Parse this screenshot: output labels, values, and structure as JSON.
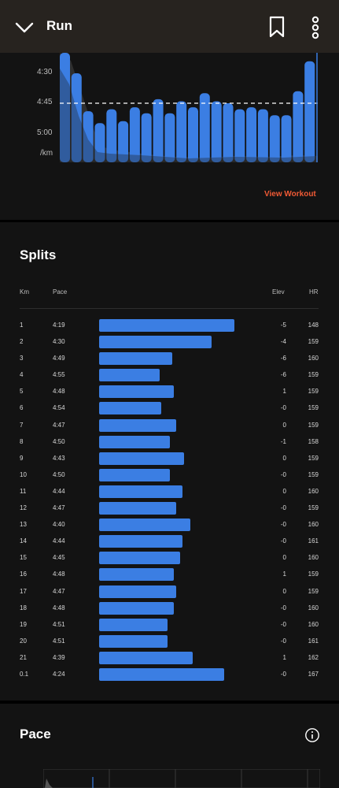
{
  "header": {
    "title": "Run",
    "background": "#27231f",
    "icons": [
      "chevron-down-icon",
      "bookmark-icon",
      "more-vertical-icon"
    ]
  },
  "pace_chart": {
    "y_labels": [
      "4:30",
      "4:45",
      "5:00",
      "/km"
    ],
    "average_line": "4:45",
    "bar_color": "#3b7ee3",
    "link": "View Workout",
    "link_color": "#f05a35",
    "chart_data": {
      "type": "bar",
      "categories": [
        "1",
        "2",
        "3",
        "4",
        "5",
        "6",
        "7",
        "8",
        "9",
        "10",
        "11",
        "12",
        "13",
        "14",
        "15",
        "16",
        "17",
        "18",
        "19",
        "20",
        "21",
        "0.1"
      ],
      "values_pace": [
        "4:19",
        "4:30",
        "4:49",
        "4:55",
        "4:48",
        "4:54",
        "4:47",
        "4:50",
        "4:43",
        "4:50",
        "4:44",
        "4:47",
        "4:40",
        "4:44",
        "4:45",
        "4:48",
        "4:47",
        "4:48",
        "4:51",
        "4:51",
        "4:39",
        "4:24"
      ],
      "values_seconds": [
        259,
        270,
        289,
        295,
        288,
        294,
        287,
        290,
        283,
        290,
        284,
        287,
        280,
        284,
        285,
        288,
        287,
        288,
        291,
        291,
        279,
        264
      ],
      "ylabel": "/km",
      "reference_line": 285
    }
  },
  "splits": {
    "title": "Splits",
    "headers": {
      "km": "Km",
      "pace": "Pace",
      "elev": "Elev",
      "hr": "HR"
    },
    "rows": [
      {
        "km": "1",
        "pace": "4:19",
        "elev": "-5",
        "hr": "148",
        "seconds": 259
      },
      {
        "km": "2",
        "pace": "4:30",
        "elev": "-4",
        "hr": "159",
        "seconds": 270
      },
      {
        "km": "3",
        "pace": "4:49",
        "elev": "-6",
        "hr": "160",
        "seconds": 289
      },
      {
        "km": "4",
        "pace": "4:55",
        "elev": "-6",
        "hr": "159",
        "seconds": 295
      },
      {
        "km": "5",
        "pace": "4:48",
        "elev": "1",
        "hr": "159",
        "seconds": 288
      },
      {
        "km": "6",
        "pace": "4:54",
        "elev": "-0",
        "hr": "159",
        "seconds": 294
      },
      {
        "km": "7",
        "pace": "4:47",
        "elev": "0",
        "hr": "159",
        "seconds": 287
      },
      {
        "km": "8",
        "pace": "4:50",
        "elev": "-1",
        "hr": "158",
        "seconds": 290
      },
      {
        "km": "9",
        "pace": "4:43",
        "elev": "0",
        "hr": "159",
        "seconds": 283
      },
      {
        "km": "10",
        "pace": "4:50",
        "elev": "-0",
        "hr": "159",
        "seconds": 290
      },
      {
        "km": "11",
        "pace": "4:44",
        "elev": "0",
        "hr": "160",
        "seconds": 284
      },
      {
        "km": "12",
        "pace": "4:47",
        "elev": "-0",
        "hr": "159",
        "seconds": 287
      },
      {
        "km": "13",
        "pace": "4:40",
        "elev": "-0",
        "hr": "160",
        "seconds": 280
      },
      {
        "km": "14",
        "pace": "4:44",
        "elev": "-0",
        "hr": "161",
        "seconds": 284
      },
      {
        "km": "15",
        "pace": "4:45",
        "elev": "0",
        "hr": "160",
        "seconds": 285
      },
      {
        "km": "16",
        "pace": "4:48",
        "elev": "1",
        "hr": "159",
        "seconds": 288
      },
      {
        "km": "17",
        "pace": "4:47",
        "elev": "0",
        "hr": "159",
        "seconds": 287
      },
      {
        "km": "18",
        "pace": "4:48",
        "elev": "-0",
        "hr": "160",
        "seconds": 288
      },
      {
        "km": "19",
        "pace": "4:51",
        "elev": "-0",
        "hr": "160",
        "seconds": 291
      },
      {
        "km": "20",
        "pace": "4:51",
        "elev": "-0",
        "hr": "161",
        "seconds": 291
      },
      {
        "km": "21",
        "pace": "4:39",
        "elev": "1",
        "hr": "162",
        "seconds": 279
      },
      {
        "km": "0.1",
        "pace": "4:24",
        "elev": "-0",
        "hr": "167",
        "seconds": 264
      }
    ]
  },
  "pace_section": {
    "title": "Pace",
    "icon": "info-icon"
  }
}
